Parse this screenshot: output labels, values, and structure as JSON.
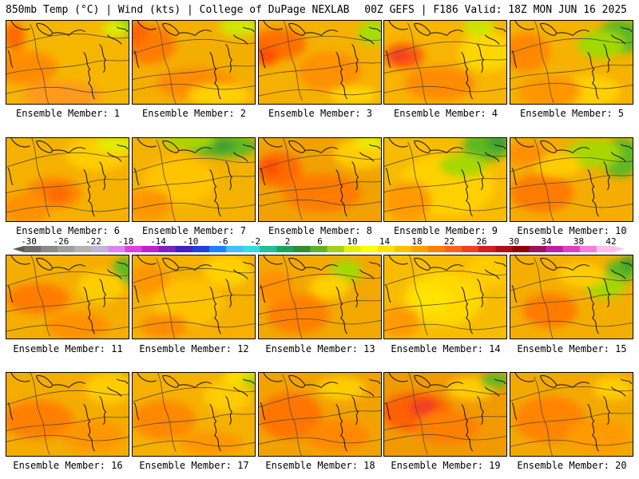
{
  "header": {
    "left": "850mb Temp (°C) | Wind (kts) | College of DuPage NEXLAB",
    "right": "00Z GEFS | F186 Valid: 18Z MON JUN 16 2025"
  },
  "members": [
    "Ensemble Member: 1",
    "Ensemble Member: 2",
    "Ensemble Member: 3",
    "Ensemble Member: 4",
    "Ensemble Member: 5",
    "Ensemble Member: 6",
    "Ensemble Member: 7",
    "Ensemble Member: 8",
    "Ensemble Member: 9",
    "Ensemble Member: 10",
    "Ensemble Member: 11",
    "Ensemble Member: 12",
    "Ensemble Member: 13",
    "Ensemble Member: 14",
    "Ensemble Member: 15",
    "Ensemble Member: 16",
    "Ensemble Member: 17",
    "Ensemble Member: 18",
    "Ensemble Member: 19",
    "Ensemble Member: 20"
  ],
  "colorbar": {
    "labels": [
      "-30",
      "-26",
      "-22",
      "-18",
      "-14",
      "-10",
      "-6",
      "-2",
      "2",
      "6",
      "10",
      "14",
      "18",
      "22",
      "26",
      "30",
      "34",
      "38",
      "42"
    ],
    "colors": [
      "#6e6e6e",
      "#8a8a8a",
      "#a0a0a0",
      "#b4b4b4",
      "#c0b4d8",
      "#e080f0",
      "#e040e0",
      "#c020d0",
      "#8020c0",
      "#4020c0",
      "#2040e0",
      "#2080ff",
      "#40c0ff",
      "#30e0e0",
      "#20c0a0",
      "#20a060",
      "#309030",
      "#60b030",
      "#a0d020",
      "#e0f000",
      "#ffff00",
      "#ffe000",
      "#ffc000",
      "#ffa000",
      "#ff8000",
      "#ff6020",
      "#f04020",
      "#d02020",
      "#b01010",
      "#900000",
      "#a01060",
      "#c020a0",
      "#e040c0",
      "#f080e0",
      "#ffc0f0"
    ]
  },
  "member_fields": [
    {
      "base": "#f6b600",
      "blobs": [
        [
          "#ff8c00",
          25,
          60,
          40,
          22
        ],
        [
          "#ff6a00",
          10,
          20,
          14,
          18
        ],
        [
          "#ff9a1a",
          70,
          95,
          50,
          18
        ],
        [
          "#7acb10",
          150,
          5,
          14,
          14
        ],
        [
          "#d8ee00",
          138,
          10,
          16,
          10
        ]
      ]
    },
    {
      "base": "#f4ae00",
      "blobs": [
        [
          "#ff7c00",
          20,
          30,
          35,
          25
        ],
        [
          "#ff6400",
          5,
          15,
          12,
          15
        ],
        [
          "#ff8c00",
          80,
          80,
          50,
          20
        ],
        [
          "#cfe800",
          135,
          8,
          25,
          12
        ],
        [
          "#ffd000",
          110,
          95,
          40,
          14
        ]
      ]
    },
    {
      "base": "#f5b000",
      "blobs": [
        [
          "#ff7000",
          25,
          30,
          35,
          20
        ],
        [
          "#ff5000",
          10,
          45,
          15,
          12
        ],
        [
          "#ff9000",
          90,
          65,
          40,
          25
        ],
        [
          "#a8dc00",
          145,
          15,
          20,
          16
        ],
        [
          "#ffd400",
          120,
          95,
          30,
          12
        ]
      ]
    },
    {
      "base": "#f7b400",
      "blobs": [
        [
          "#ff5a10",
          25,
          45,
          25,
          16
        ],
        [
          "#f03a20",
          20,
          45,
          12,
          7
        ],
        [
          "#ff8c00",
          70,
          80,
          45,
          22
        ],
        [
          "#ffd600",
          130,
          40,
          35,
          25
        ],
        [
          "#c8e600",
          120,
          8,
          20,
          12
        ]
      ]
    },
    {
      "base": "#f5b200",
      "blobs": [
        [
          "#ff8800",
          20,
          40,
          30,
          25
        ],
        [
          "#5fb820",
          140,
          20,
          30,
          22
        ],
        [
          "#a0d800",
          115,
          30,
          30,
          18
        ],
        [
          "#ffd000",
          100,
          90,
          40,
          20
        ],
        [
          "#ff9600",
          50,
          90,
          40,
          20
        ]
      ]
    },
    {
      "base": "#f5b100",
      "blobs": [
        [
          "#ff8400",
          60,
          70,
          35,
          20
        ],
        [
          "#ff6a00",
          65,
          70,
          16,
          12
        ],
        [
          "#ffcc00",
          115,
          20,
          40,
          22
        ],
        [
          "#e0ee00",
          140,
          8,
          25,
          10
        ],
        [
          "#ff9000",
          25,
          90,
          30,
          20
        ]
      ]
    },
    {
      "base": "#f4b200",
      "blobs": [
        [
          "#ffc400",
          60,
          55,
          45,
          30
        ],
        [
          "#5fb820",
          115,
          10,
          45,
          15
        ],
        [
          "#3f9e30",
          110,
          10,
          20,
          8
        ],
        [
          "#a6d800",
          70,
          5,
          35,
          8
        ],
        [
          "#ff9600",
          20,
          85,
          30,
          20
        ]
      ]
    },
    {
      "base": "#f1a200",
      "blobs": [
        [
          "#ff6a00",
          25,
          40,
          30,
          22
        ],
        [
          "#ff5000",
          15,
          38,
          12,
          10
        ],
        [
          "#ff7c00",
          80,
          70,
          50,
          25
        ],
        [
          "#ffcc00",
          130,
          20,
          35,
          20
        ],
        [
          "#e4f000",
          140,
          5,
          20,
          8
        ]
      ]
    },
    {
      "base": "#f7bb00",
      "blobs": [
        [
          "#ffd000",
          80,
          60,
          60,
          40
        ],
        [
          "#5fb820",
          130,
          10,
          30,
          20
        ],
        [
          "#3f9e30",
          145,
          5,
          15,
          10
        ],
        [
          "#a6d800",
          100,
          35,
          30,
          15
        ],
        [
          "#ff9a00",
          30,
          80,
          30,
          25
        ]
      ]
    },
    {
      "base": "#f4ad00",
      "blobs": [
        [
          "#ff7c00",
          40,
          70,
          40,
          25
        ],
        [
          "#5fb820",
          140,
          25,
          25,
          25
        ],
        [
          "#a6d800",
          105,
          20,
          35,
          18
        ],
        [
          "#ffcc00",
          60,
          35,
          30,
          15
        ],
        [
          "#ff9000",
          20,
          20,
          25,
          15
        ]
      ]
    },
    {
      "base": "#f4ae00",
      "blobs": [
        [
          "#ff7c00",
          40,
          55,
          40,
          20
        ],
        [
          "#5fb820",
          150,
          20,
          15,
          18
        ],
        [
          "#ff9000",
          90,
          90,
          40,
          18
        ],
        [
          "#ffcc00",
          120,
          40,
          30,
          20
        ]
      ]
    },
    {
      "base": "#f5b000",
      "blobs": [
        [
          "#ffc200",
          70,
          60,
          45,
          30
        ],
        [
          "#ff9600",
          20,
          30,
          25,
          20
        ],
        [
          "#ffd000",
          120,
          20,
          30,
          20
        ],
        [
          "#ff8c00",
          40,
          90,
          30,
          15
        ]
      ]
    },
    {
      "base": "#f3a800",
      "blobs": [
        [
          "#ff8000",
          50,
          75,
          40,
          25
        ],
        [
          "#a6d800",
          110,
          20,
          20,
          15
        ],
        [
          "#ffd000",
          90,
          40,
          25,
          15
        ],
        [
          "#ff9000",
          20,
          40,
          25,
          20
        ]
      ]
    },
    {
      "base": "#f7bc00",
      "blobs": [
        [
          "#ffd800",
          75,
          55,
          50,
          35
        ],
        [
          "#ffe400",
          60,
          55,
          25,
          18
        ],
        [
          "#ff9a00",
          20,
          85,
          25,
          20
        ],
        [
          "#ffcc00",
          130,
          20,
          25,
          20
        ]
      ]
    },
    {
      "base": "#f4ae00",
      "blobs": [
        [
          "#ff7c00",
          50,
          70,
          35,
          22
        ],
        [
          "#5fb820",
          140,
          20,
          20,
          15
        ],
        [
          "#3f9e30",
          150,
          10,
          10,
          10
        ],
        [
          "#a6d800",
          120,
          40,
          25,
          15
        ],
        [
          "#ffcc00",
          90,
          25,
          30,
          15
        ]
      ]
    },
    {
      "base": "#f4ac00",
      "blobs": [
        [
          "#ff8000",
          40,
          60,
          45,
          25
        ],
        [
          "#ff9600",
          110,
          80,
          40,
          20
        ],
        [
          "#ffcc00",
          130,
          20,
          30,
          20
        ]
      ]
    },
    {
      "base": "#f5b000",
      "blobs": [
        [
          "#ff8800",
          40,
          60,
          40,
          25
        ],
        [
          "#ffe000",
          140,
          5,
          25,
          10
        ],
        [
          "#a6d800",
          150,
          10,
          12,
          8
        ],
        [
          "#ff9600",
          100,
          90,
          40,
          15
        ],
        [
          "#ffcc00",
          120,
          30,
          30,
          20
        ]
      ]
    },
    {
      "base": "#f2a200",
      "blobs": [
        [
          "#ff7400",
          40,
          55,
          40,
          30
        ],
        [
          "#ffcc00",
          105,
          20,
          30,
          15
        ],
        [
          "#ff8800",
          100,
          80,
          40,
          20
        ]
      ]
    },
    {
      "base": "#f09a00",
      "blobs": [
        [
          "#ff6000",
          40,
          50,
          45,
          25
        ],
        [
          "#f04020",
          50,
          45,
          18,
          12
        ],
        [
          "#ff8000",
          80,
          70,
          40,
          22
        ],
        [
          "#ffcc00",
          110,
          20,
          30,
          15
        ],
        [
          "#5fb820",
          140,
          10,
          18,
          10
        ]
      ]
    },
    {
      "base": "#f3a800",
      "blobs": [
        [
          "#ff8400",
          50,
          60,
          45,
          30
        ],
        [
          "#ff9a00",
          110,
          80,
          40,
          20
        ],
        [
          "#ffcc00",
          130,
          20,
          25,
          15
        ]
      ]
    }
  ]
}
